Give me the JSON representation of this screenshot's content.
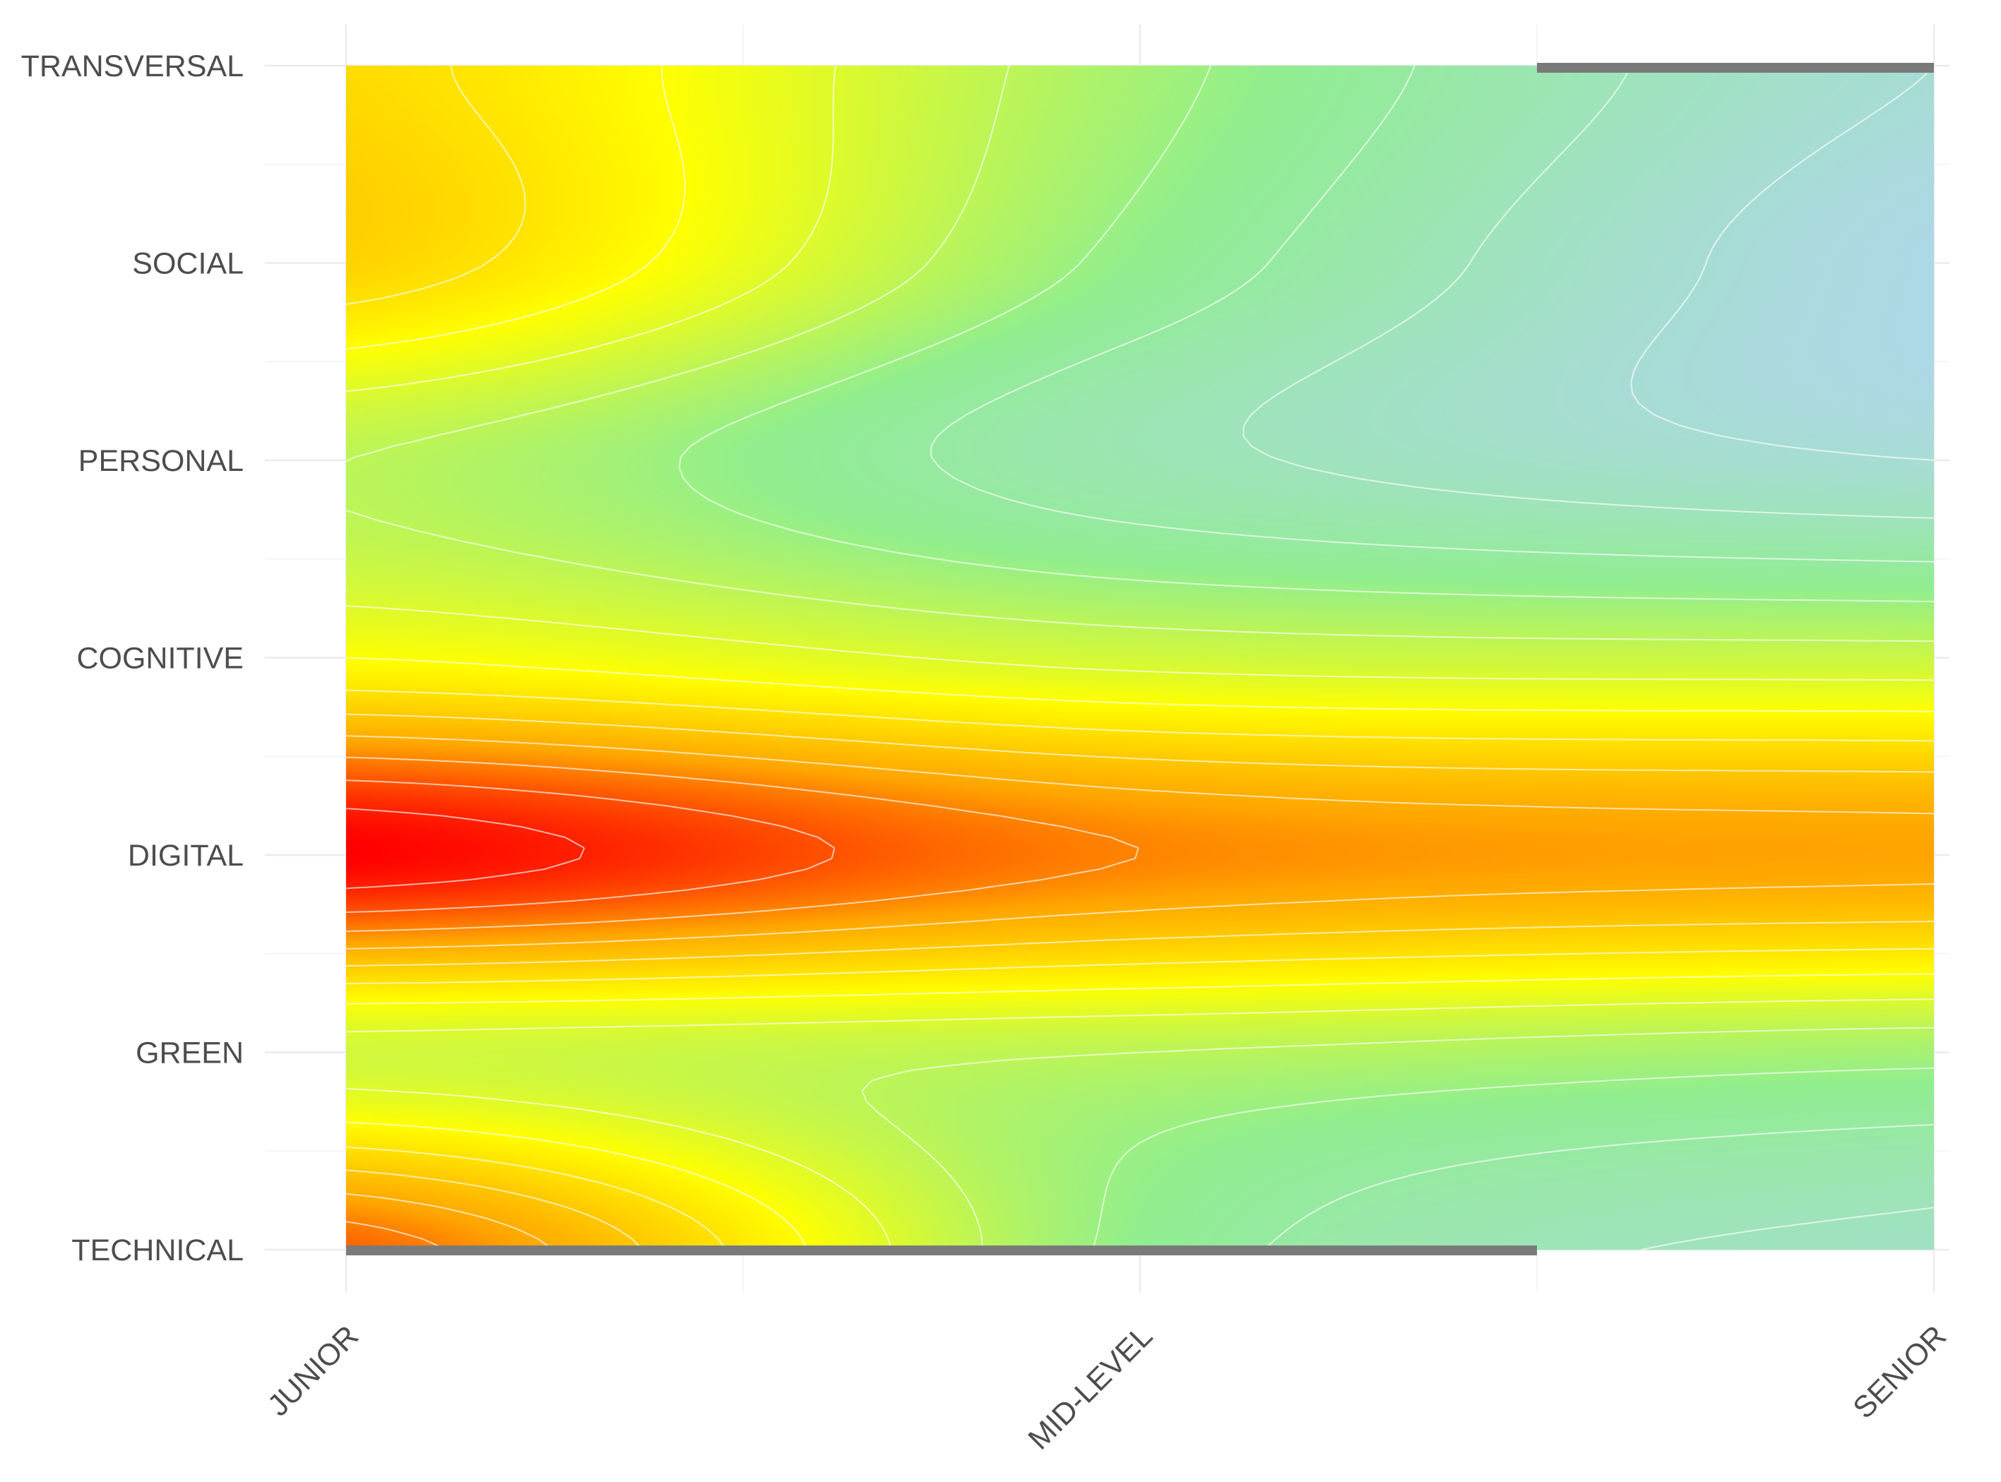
{
  "chart_data": {
    "type": "heatmap",
    "title": "",
    "xlabel": "",
    "ylabel": "",
    "x_categories": [
      "JUNIOR",
      "MID-LEVEL",
      "SENIOR"
    ],
    "y_categories": [
      "TRANSVERSAL",
      "SOCIAL",
      "PERSONAL",
      "COGNITIVE",
      "DIGITAL",
      "GREEN",
      "TECHNICAL"
    ],
    "values": [
      [
        0.6,
        0.3,
        0.05
      ],
      [
        0.62,
        0.25,
        0.0
      ],
      [
        0.35,
        0.15,
        0.05
      ],
      [
        0.5,
        0.4,
        0.38
      ],
      [
        1.0,
        0.8,
        0.75
      ],
      [
        0.4,
        0.35,
        0.3
      ],
      [
        0.85,
        0.25,
        0.1
      ]
    ],
    "color_scale": [
      "#add8e6",
      "#90ee90",
      "#ffff00",
      "#ffa500",
      "#ff0000"
    ],
    "contour_color": "#ffffff",
    "grid": true,
    "legend": "none"
  }
}
